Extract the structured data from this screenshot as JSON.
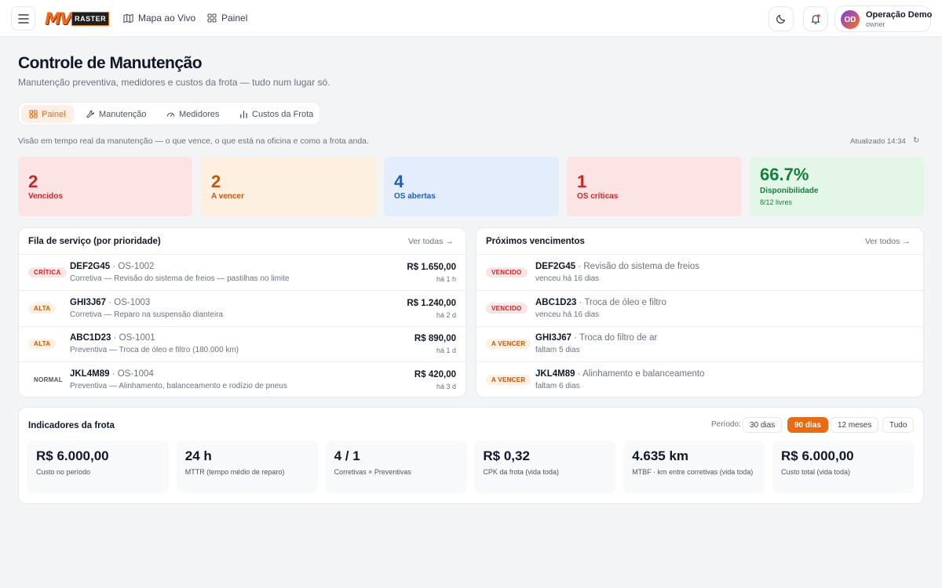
{
  "topbar": {
    "logo_text": "MV",
    "logo_box_text": "RASTER",
    "nav": [
      {
        "label": "Mapa ao Vivo",
        "icon": "map-icon"
      },
      {
        "label": "Painel",
        "icon": "grid-icon"
      }
    ],
    "user": {
      "initials": "OD",
      "name": "Operação Demo",
      "role": "owner"
    }
  },
  "header": {
    "title": "Controle de Manutenção",
    "subtitle": "Manutenção preventiva, medidores e custos da frota — tudo num lugar só."
  },
  "tabs": [
    {
      "label": "Painel",
      "icon": "grid-icon",
      "active": true
    },
    {
      "label": "Manutenção",
      "icon": "wrench-icon",
      "active": false
    },
    {
      "label": "Medidores",
      "icon": "gauge-icon",
      "active": false
    },
    {
      "label": "Custos da Frota",
      "icon": "bar-chart-icon",
      "active": false
    }
  ],
  "overview": {
    "description": "Visão em tempo real da manutenção — o que vence, o que está na oficina e como a frota anda.",
    "updated": "Atualizado 14:34",
    "refresh_glyph": "↻"
  },
  "kpis": [
    {
      "value": "2",
      "label": "Vencidos",
      "bg": "#fde4e4",
      "color": "#c62828"
    },
    {
      "value": "2",
      "label": "A vencer",
      "bg": "#fdf0e0",
      "color": "#c2570c"
    },
    {
      "value": "4",
      "label": "OS abertas",
      "bg": "#e4edfb",
      "color": "#1d5fbf"
    },
    {
      "value": "1",
      "label": "OS críticas",
      "bg": "#fde4e4",
      "color": "#c62828"
    },
    {
      "value": "66.7%",
      "label": "Disponibilidade",
      "sublabel": "8/12 livres",
      "bg": "#e3f6e8",
      "color": "#15803d"
    }
  ],
  "service_queue": {
    "title": "Fila de serviço (por prioridade)",
    "link": "Ver todas →",
    "rows": [
      {
        "badge": "CRÍTICA",
        "badge_bg": "#fde4e4",
        "badge_color": "#c62828",
        "plate": "DEF2G45",
        "order": "· OS-1002",
        "desc": "Corretiva — Revisão do sistema de freios — pastilhas no limite",
        "amount": "R$ 1.650,00",
        "time": "há 1 h"
      },
      {
        "badge": "ALTA",
        "badge_bg": "#fdf0e0",
        "badge_color": "#c2570c",
        "plate": "GHI3J67",
        "order": "· OS-1003",
        "desc": "Corretiva — Reparo na suspensão dianteira",
        "amount": "R$ 1.240,00",
        "time": "há 2 d"
      },
      {
        "badge": "ALTA",
        "badge_bg": "#fdf0e0",
        "badge_color": "#c2570c",
        "plate": "ABC1D23",
        "order": "· OS-1001",
        "desc": "Preventiva — Troca de óleo e filtro (180.000 km)",
        "amount": "R$ 890,00",
        "time": "há 1 d"
      },
      {
        "badge": "NORMAL",
        "badge_bg": "#ffffff",
        "badge_color": "#4b5563",
        "plate": "JKL4M89",
        "order": "· OS-1004",
        "desc": "Preventiva — Alinhamento, balanceamento e rodízio de pneus",
        "amount": "R$ 420,00",
        "time": "há 3 d"
      }
    ]
  },
  "upcoming": {
    "title": "Próximos vencimentos",
    "link": "Ver todos →",
    "rows": [
      {
        "badge": "VENCIDO",
        "badge_bg": "#fde4e4",
        "badge_color": "#c62828",
        "plate": "DEF2G45",
        "task": "· Revisão do sistema de freios",
        "sub": "venceu há 16 dias"
      },
      {
        "badge": "VENCIDO",
        "badge_bg": "#fde4e4",
        "badge_color": "#c62828",
        "plate": "ABC1D23",
        "task": "· Troca de óleo e filtro",
        "sub": "venceu há 16 dias"
      },
      {
        "badge": "A VENCER",
        "badge_bg": "#fdf0e0",
        "badge_color": "#c2570c",
        "plate": "GHI3J67",
        "task": "· Troca do filtro de ar",
        "sub": "faltam 5 dias"
      },
      {
        "badge": "A VENCER",
        "badge_bg": "#fdf0e0",
        "badge_color": "#c2570c",
        "plate": "JKL4M89",
        "task": "· Alinhamento e balanceamento",
        "sub": "faltam 6 dias"
      }
    ]
  },
  "indicators": {
    "title": "Indicadores da frota",
    "period_label": "Período:",
    "periods": [
      {
        "label": "30 dias",
        "active": false
      },
      {
        "label": "90 dias",
        "active": true
      },
      {
        "label": "12 meses",
        "active": false
      },
      {
        "label": "Tudo",
        "active": false
      }
    ],
    "stats": [
      {
        "value": "R$ 6.000,00",
        "label": "Custo no período"
      },
      {
        "value": "24 h",
        "label": "MTTR (tempo médio de reparo)"
      },
      {
        "value": "4 / 1",
        "label": "Corretivas × Preventivas"
      },
      {
        "value": "R$ 0,32",
        "label": "CPK da frota (vida toda)"
      },
      {
        "value": "4.635 km",
        "label": "MTBF · km entre corretivas (vida toda)"
      },
      {
        "value": "R$ 6.000,00",
        "label": "Custo total (vida toda)"
      }
    ]
  }
}
